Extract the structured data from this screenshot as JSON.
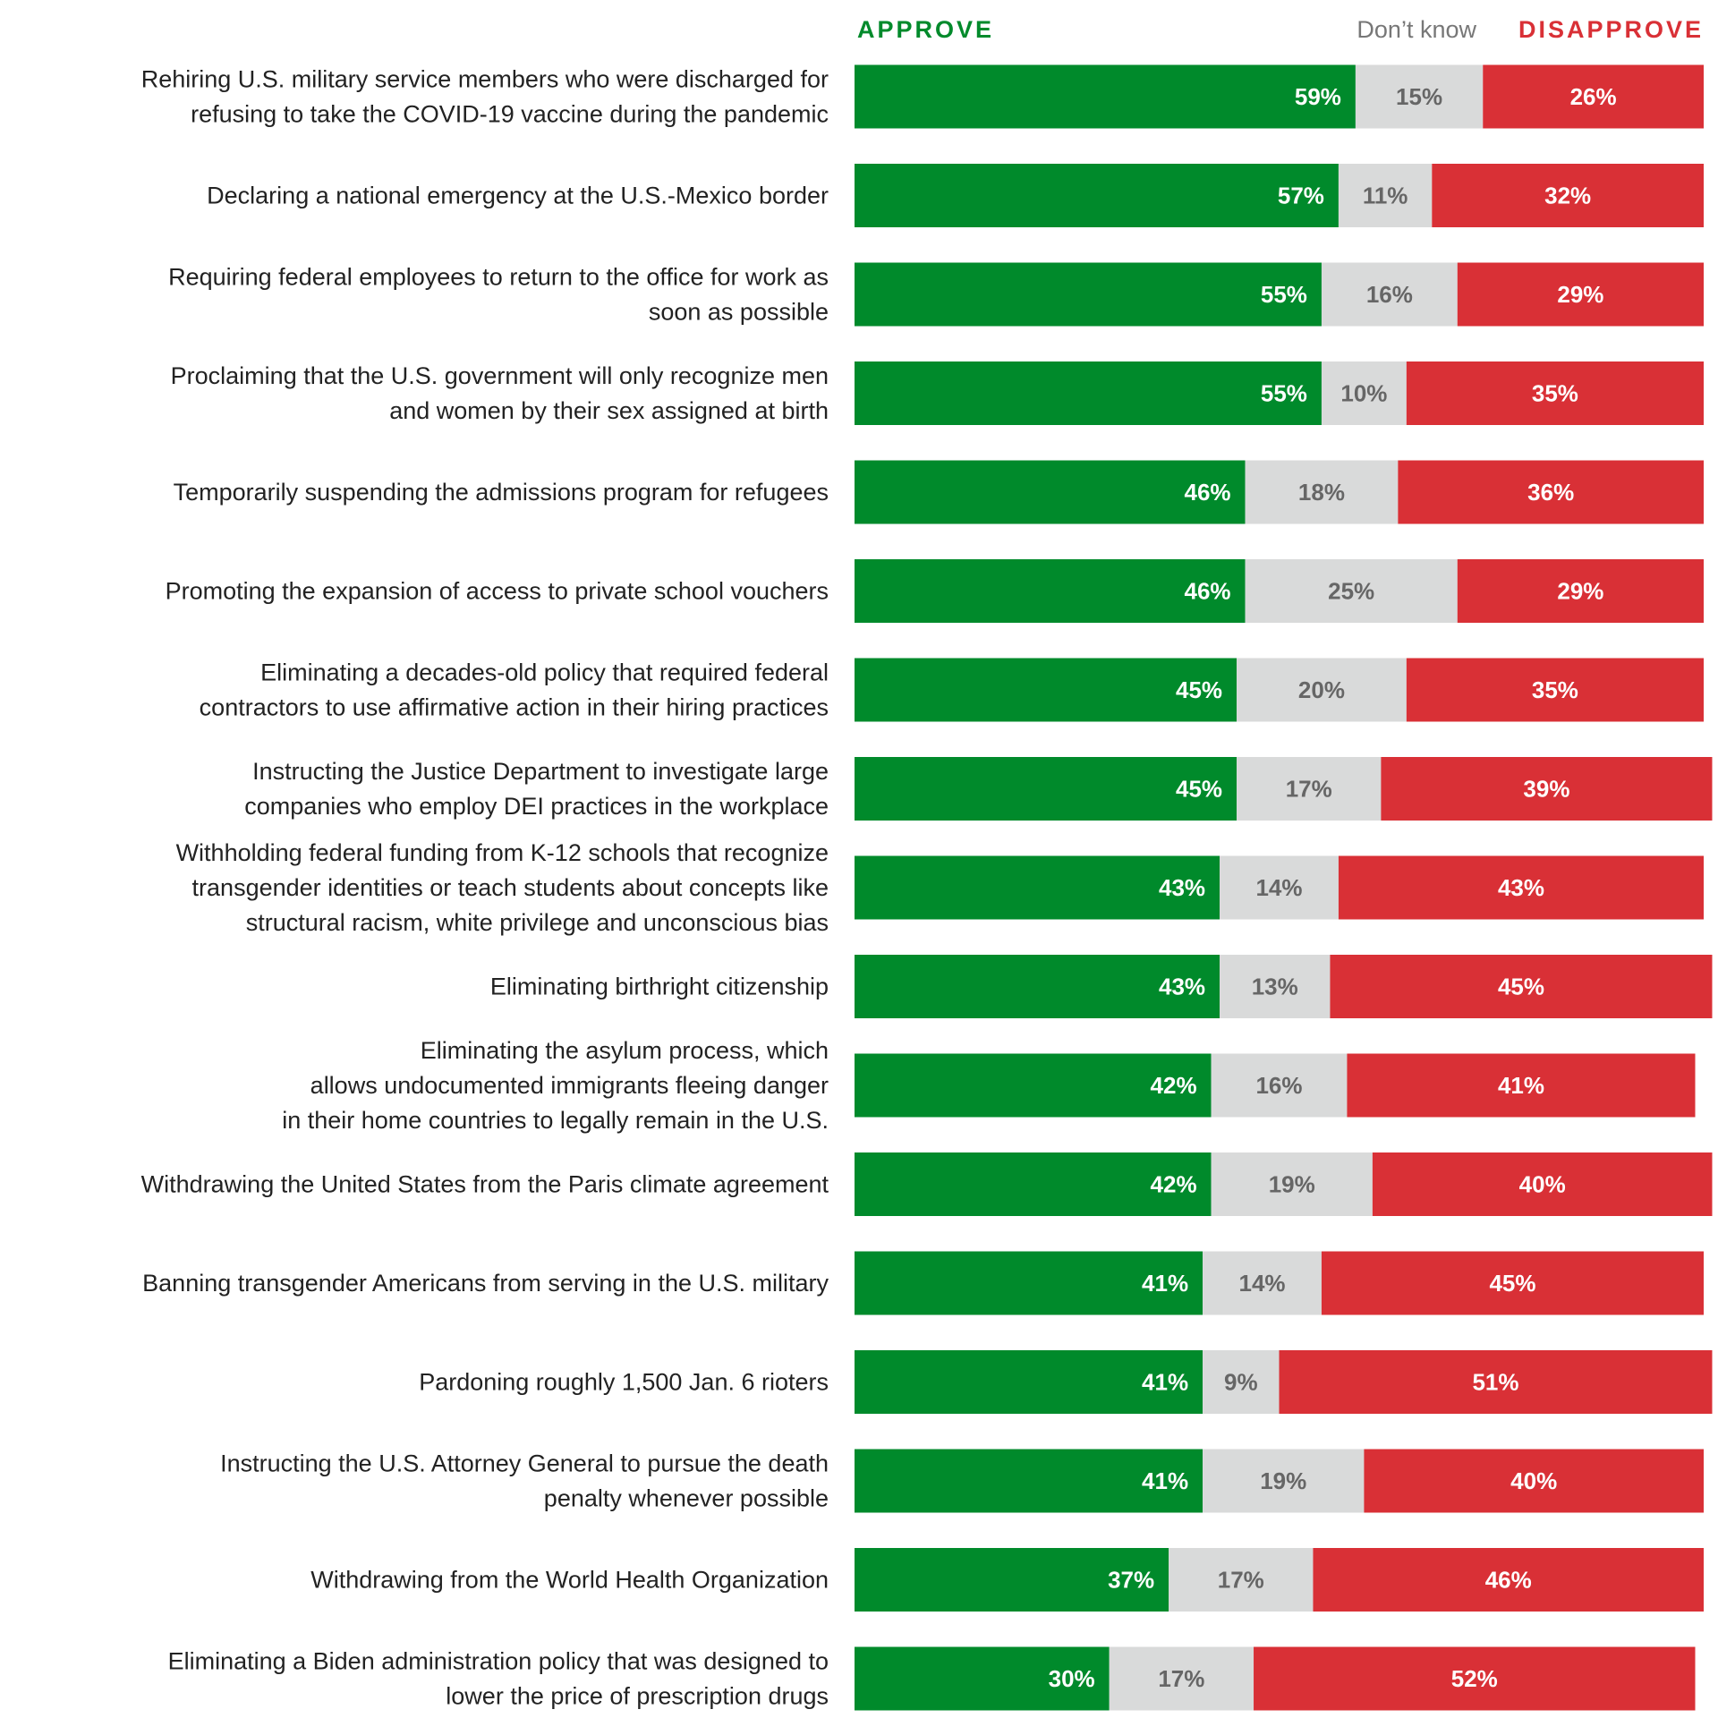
{
  "chart_data": {
    "type": "bar",
    "orientation": "horizontal",
    "stacked": true,
    "legend": {
      "approve": "APPROVE",
      "dont_know": "Don’t know",
      "disapprove": "DISAPPROVE"
    },
    "colors": {
      "approve": "#008a2b",
      "dont_know": "#d9dada",
      "disapprove": "#d93036",
      "approve_text": "#ffffff",
      "dont_know_text": "#666666",
      "disapprove_text": "#ffffff",
      "legend_dont_know": "#777777",
      "label": "#222222"
    },
    "categories": [
      [
        "Rehiring U.S. military service members who were discharged for",
        "refusing to take the COVID-19 vaccine during the pandemic"
      ],
      [
        "Declaring a national emergency at the U.S.-Mexico border"
      ],
      [
        "Requiring federal employees to return to the office for work as",
        "soon as possible"
      ],
      [
        "Proclaiming that the U.S. government will only recognize men",
        "and women by their sex assigned at birth"
      ],
      [
        "Temporarily suspending the admissions program for refugees"
      ],
      [
        "Promoting the expansion of access to private school vouchers"
      ],
      [
        "Eliminating a decades-old policy that required federal",
        "contractors to use affirmative action in their hiring practices"
      ],
      [
        "Instructing the Justice Department to investigate large",
        "companies who employ DEI practices in the workplace"
      ],
      [
        "Withholding federal funding from K-12 schools that recognize",
        "transgender identities or teach students about concepts like",
        "structural racism, white privilege and unconscious bias"
      ],
      [
        "Eliminating birthright citizenship"
      ],
      [
        "Eliminating the asylum process, which",
        "allows undocumented immigrants fleeing danger",
        "in their home countries to legally remain in the U.S."
      ],
      [
        "Withdrawing the United States from the Paris climate agreement"
      ],
      [
        "Banning transgender Americans from serving in the U.S. military"
      ],
      [
        "Pardoning roughly 1,500 Jan. 6 rioters"
      ],
      [
        "Instructing the U.S. Attorney General to pursue the death",
        "penalty whenever possible"
      ],
      [
        "Withdrawing from the World Health Organization"
      ],
      [
        "Eliminating a Biden administration policy that was designed to",
        "lower the price of prescription drugs"
      ]
    ],
    "series": [
      {
        "name": "APPROVE",
        "key": "approve",
        "values": [
          59,
          57,
          55,
          55,
          46,
          46,
          45,
          45,
          43,
          43,
          42,
          42,
          41,
          41,
          41,
          37,
          30
        ]
      },
      {
        "name": "Don’t know",
        "key": "dont_know",
        "values": [
          15,
          11,
          16,
          10,
          18,
          25,
          20,
          17,
          14,
          13,
          16,
          19,
          14,
          9,
          19,
          17,
          17
        ]
      },
      {
        "name": "DISAPPROVE",
        "key": "disapprove",
        "values": [
          26,
          32,
          29,
          35,
          36,
          29,
          35,
          39,
          43,
          45,
          41,
          40,
          45,
          51,
          40,
          46,
          52
        ]
      }
    ],
    "value_suffix": "%",
    "xlim": [
      0,
      100
    ]
  }
}
